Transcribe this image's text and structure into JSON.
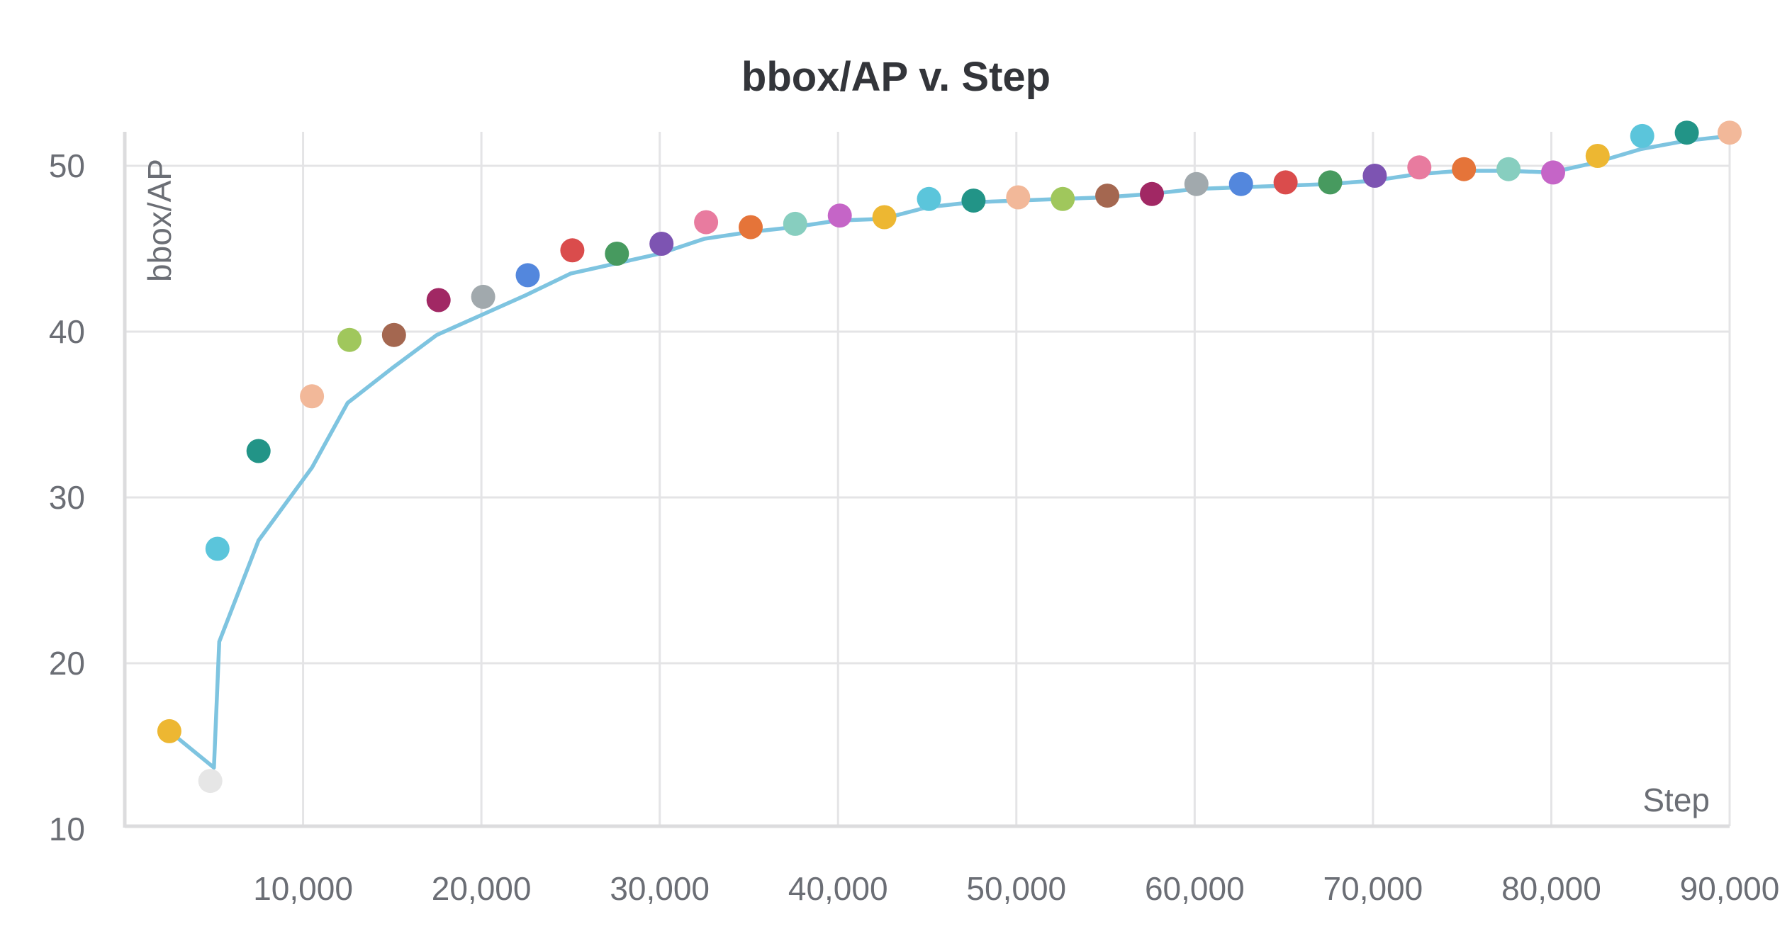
{
  "chart_data": {
    "type": "line",
    "title": "bbox/AP v. Step",
    "xlabel": "Step",
    "ylabel": "bbox/AP",
    "xlim": [
      0,
      90000
    ],
    "ylim": [
      10,
      52
    ],
    "x_ticks": [
      10000,
      20000,
      30000,
      40000,
      50000,
      60000,
      70000,
      80000,
      90000
    ],
    "x_tick_labels": [
      "10,000",
      "20,000",
      "30,000",
      "40,000",
      "50,000",
      "60,000",
      "70,000",
      "80,000",
      "90,000"
    ],
    "y_ticks": [
      10,
      20,
      30,
      40,
      50
    ],
    "y_tick_labels": [
      "10",
      "20",
      "30",
      "40",
      "50"
    ],
    "grid": true,
    "line": {
      "color": "#7ec4e0",
      "x": [
        2500,
        5000,
        5300,
        7500,
        10500,
        12500,
        15000,
        17500,
        20000,
        22500,
        25000,
        27500,
        30000,
        32500,
        35000,
        37500,
        40000,
        42500,
        45000,
        47500,
        50000,
        52500,
        55000,
        57500,
        60000,
        62500,
        65000,
        67500,
        70000,
        72500,
        75000,
        77500,
        80000,
        82500,
        85000,
        87500,
        90000
      ],
      "y": [
        15.9,
        13.7,
        21.3,
        27.4,
        31.8,
        35.7,
        37.8,
        39.8,
        41.0,
        42.2,
        43.5,
        44.1,
        44.7,
        45.6,
        46.0,
        46.3,
        46.7,
        46.8,
        47.5,
        47.8,
        47.9,
        48.0,
        48.1,
        48.3,
        48.6,
        48.7,
        48.8,
        48.9,
        49.1,
        49.5,
        49.7,
        49.7,
        49.6,
        50.2,
        51.0,
        51.5,
        51.8
      ]
    },
    "points": [
      {
        "x": 2500,
        "y": 15.9,
        "color": "#edb732"
      },
      {
        "x": 4800,
        "y": 12.9,
        "color": "#e6e6e6"
      },
      {
        "x": 5200,
        "y": 26.9,
        "color": "#5bc5db"
      },
      {
        "x": 7500,
        "y": 32.8,
        "color": "#229487"
      },
      {
        "x": 10500,
        "y": 36.1,
        "color": "#f2b899"
      },
      {
        "x": 12600,
        "y": 39.5,
        "color": "#a0c75c"
      },
      {
        "x": 15100,
        "y": 39.8,
        "color": "#a46750"
      },
      {
        "x": 17600,
        "y": 41.9,
        "color": "#a12864"
      },
      {
        "x": 20100,
        "y": 42.1,
        "color": "#a1a9ad"
      },
      {
        "x": 22600,
        "y": 43.4,
        "color": "#5387dd"
      },
      {
        "x": 25100,
        "y": 44.9,
        "color": "#da4c4c"
      },
      {
        "x": 27600,
        "y": 44.7,
        "color": "#479a5f"
      },
      {
        "x": 30100,
        "y": 45.3,
        "color": "#7d54b2"
      },
      {
        "x": 32600,
        "y": 46.6,
        "color": "#e87b9f"
      },
      {
        "x": 35100,
        "y": 46.3,
        "color": "#e57439"
      },
      {
        "x": 37600,
        "y": 46.5,
        "color": "#87cebf"
      },
      {
        "x": 40100,
        "y": 47.0,
        "color": "#c565c7"
      },
      {
        "x": 42600,
        "y": 46.9,
        "color": "#edb732"
      },
      {
        "x": 45100,
        "y": 48.0,
        "color": "#5bc5db"
      },
      {
        "x": 47600,
        "y": 47.9,
        "color": "#229487"
      },
      {
        "x": 50100,
        "y": 48.1,
        "color": "#f2b899"
      },
      {
        "x": 52600,
        "y": 48.0,
        "color": "#a0c75c"
      },
      {
        "x": 55100,
        "y": 48.2,
        "color": "#a46750"
      },
      {
        "x": 57600,
        "y": 48.3,
        "color": "#a12864"
      },
      {
        "x": 60100,
        "y": 48.9,
        "color": "#a1a9ad"
      },
      {
        "x": 62600,
        "y": 48.9,
        "color": "#5387dd"
      },
      {
        "x": 65100,
        "y": 49.0,
        "color": "#da4c4c"
      },
      {
        "x": 67600,
        "y": 49.0,
        "color": "#479a5f"
      },
      {
        "x": 70100,
        "y": 49.4,
        "color": "#7d54b2"
      },
      {
        "x": 72600,
        "y": 49.9,
        "color": "#e87b9f"
      },
      {
        "x": 75100,
        "y": 49.8,
        "color": "#e57439"
      },
      {
        "x": 77600,
        "y": 49.8,
        "color": "#87cebf"
      },
      {
        "x": 80100,
        "y": 49.6,
        "color": "#c565c7"
      },
      {
        "x": 82600,
        "y": 50.6,
        "color": "#edb732"
      },
      {
        "x": 85100,
        "y": 51.8,
        "color": "#5bc5db"
      },
      {
        "x": 87600,
        "y": 52.0,
        "color": "#229487"
      },
      {
        "x": 90000,
        "y": 52.0,
        "color": "#f2b899"
      }
    ]
  }
}
